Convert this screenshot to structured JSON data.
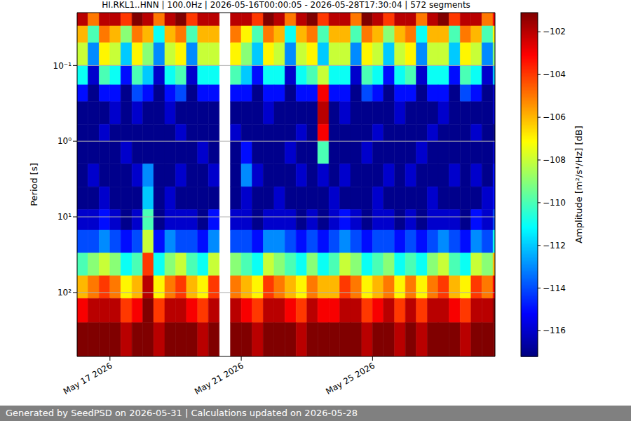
{
  "chart_data": {
    "type": "heatmap",
    "title": "HI.RKL1..HNN | 100.0Hz | 2026-05-16T00:00:05 - 2026-05-28T17:30:04 | 572 segments",
    "ylabel": "Period [s]",
    "xlim": [
      16,
      28.73
    ],
    "xticks": [
      {
        "value": 17,
        "label": "May 17 2026"
      },
      {
        "value": 21,
        "label": "May 21 2026"
      },
      {
        "value": 25,
        "label": "May 25 2026"
      }
    ],
    "ylim": [
      0.02,
      700
    ],
    "yticks": [
      {
        "value": 0.1,
        "label": "10⁻¹"
      },
      {
        "value": 1,
        "label": "10⁰"
      },
      {
        "value": 10,
        "label": "10¹"
      },
      {
        "value": 100,
        "label": "10²"
      }
    ],
    "log": "y",
    "grid": "y",
    "x_edges": [
      16,
      16.33,
      16.67,
      17,
      17.33,
      17.67,
      18,
      18.33,
      18.67,
      19,
      19.33,
      19.67,
      20,
      20.33,
      20.67,
      21,
      21.33,
      21.67,
      22,
      22.33,
      22.67,
      23,
      23.33,
      23.67,
      24,
      24.33,
      24.67,
      25,
      25.33,
      25.67,
      26,
      26.33,
      26.67,
      27,
      27.33,
      27.67,
      28,
      28.33,
      28.67,
      28.73
    ],
    "y_edges": [
      0.02,
      0.03,
      0.05,
      0.1,
      0.18,
      0.3,
      0.6,
      1,
      2,
      4,
      8,
      15,
      30,
      60,
      120,
      250,
      700
    ],
    "cells": [
      [
        -102,
        -105,
        -102,
        -102,
        -104,
        -101,
        -102,
        -105,
        -102,
        -101,
        -104,
        -102,
        -102,
        null,
        -102,
        -102,
        -104,
        -101,
        -102,
        -105,
        -102,
        -101,
        -104,
        -102,
        -102,
        -105,
        -101,
        -102,
        -104,
        -102,
        -102,
        -105,
        -102,
        -101,
        -104,
        -102,
        -102,
        -105,
        -103
      ],
      [
        -106,
        -110,
        -105,
        -106,
        -109,
        -105,
        -106,
        -111,
        -106,
        -105,
        -110,
        -106,
        -106,
        null,
        -105,
        -107,
        -110,
        -105,
        -106,
        -111,
        -106,
        -105,
        -110,
        -106,
        -106,
        -110,
        -105,
        -106,
        -109,
        -106,
        -105,
        -111,
        -106,
        -106,
        -110,
        -105,
        -106,
        -110,
        -107
      ],
      [
        -108,
        -113,
        -107,
        -108,
        -112,
        -107,
        -109,
        -113,
        -108,
        -107,
        -113,
        -108,
        -108,
        null,
        -107,
        -109,
        -112,
        -107,
        -108,
        -113,
        -108,
        -107,
        -112,
        -108,
        -108,
        -113,
        -107,
        -108,
        -112,
        -108,
        -107,
        -113,
        -108,
        -108,
        -112,
        -107,
        -108,
        -113,
        -109
      ],
      [
        -111,
        -116,
        -110,
        -111,
        -115,
        -110,
        -112,
        -116,
        -111,
        -110,
        -116,
        -111,
        -111,
        null,
        -110,
        -112,
        -115,
        -111,
        -111,
        -116,
        -111,
        -110,
        -108,
        -111,
        -111,
        -116,
        -110,
        -111,
        -115,
        -111,
        -110,
        -116,
        -111,
        -111,
        -115,
        -110,
        -111,
        -116,
        -112
      ],
      [
        -115,
        -117,
        -115,
        -115,
        -117,
        -114,
        -115,
        -117,
        -115,
        -114,
        -117,
        -115,
        -115,
        null,
        -115,
        -115,
        -117,
        -115,
        -115,
        -117,
        -115,
        -115,
        -103,
        -115,
        -115,
        -117,
        -114,
        -115,
        -117,
        -115,
        -115,
        -117,
        -115,
        -115,
        -117,
        -114,
        -115,
        -117,
        -116
      ],
      [
        -117,
        -117,
        -117,
        -116,
        -117,
        -116,
        -117,
        -117,
        -116,
        -117,
        -117,
        -117,
        -117,
        null,
        -117,
        -117,
        -117,
        -116,
        -117,
        -117,
        -117,
        -117,
        -102,
        -117,
        -116,
        -117,
        -117,
        -117,
        -117,
        -116,
        -117,
        -117,
        -117,
        -116,
        -117,
        -117,
        -117,
        -117,
        -116
      ],
      [
        -117,
        -117,
        -116,
        -117,
        -117,
        -117,
        -117,
        -117,
        -117,
        -116,
        -117,
        -117,
        -117,
        null,
        -116,
        -117,
        -117,
        -117,
        -117,
        -117,
        -116,
        -117,
        -103,
        -117,
        -117,
        -117,
        -117,
        -116,
        -117,
        -117,
        -117,
        -117,
        -116,
        -117,
        -117,
        -117,
        -116,
        -117,
        -117
      ],
      [
        -117,
        -117,
        -117,
        -117,
        -116,
        -117,
        -117,
        -117,
        -117,
        -117,
        -117,
        -116,
        -117,
        null,
        -117,
        -115,
        -117,
        -117,
        -117,
        -116,
        -117,
        -117,
        -110,
        -117,
        -117,
        -117,
        -116,
        -117,
        -117,
        -117,
        -117,
        -116,
        -117,
        -117,
        -117,
        -117,
        -117,
        -117,
        -116
      ],
      [
        -117,
        -116,
        -117,
        -117,
        -117,
        -116,
        -113,
        -117,
        -117,
        -116,
        -117,
        -117,
        -116,
        null,
        -117,
        -113,
        -116,
        -117,
        -117,
        -117,
        -116,
        -117,
        -116,
        -117,
        -116,
        -117,
        -117,
        -117,
        -116,
        -117,
        -116,
        -117,
        -117,
        -117,
        -116,
        -117,
        -116,
        -117,
        -115
      ],
      [
        -117,
        -117,
        -116,
        -117,
        -117,
        -117,
        -112,
        -117,
        -116,
        -117,
        -117,
        -117,
        -117,
        null,
        -117,
        -116,
        -117,
        -117,
        -116,
        -117,
        -117,
        -117,
        -117,
        -116,
        -117,
        -117,
        -117,
        -116,
        -117,
        -117,
        -117,
        -117,
        -116,
        -117,
        -117,
        -117,
        -117,
        -116,
        -115
      ],
      [
        -116,
        -116,
        -115,
        -116,
        -117,
        -116,
        -110,
        -117,
        -116,
        -116,
        -116,
        -117,
        -115,
        null,
        -116,
        -116,
        -117,
        -116,
        -116,
        -116,
        -117,
        -116,
        -117,
        -116,
        -115,
        -116,
        -117,
        -116,
        -116,
        -117,
        -116,
        -117,
        -116,
        -116,
        -116,
        -117,
        -115,
        -116,
        -114
      ],
      [
        -114,
        -114,
        -113,
        -114,
        -115,
        -114,
        -108,
        -115,
        -113,
        -114,
        -114,
        -115,
        -113,
        null,
        -114,
        -114,
        -115,
        -113,
        -113,
        -114,
        -115,
        -114,
        -115,
        -114,
        -113,
        -114,
        -115,
        -114,
        -114,
        -115,
        -114,
        -115,
        -114,
        -113,
        -114,
        -115,
        -113,
        -114,
        -111
      ],
      [
        -110,
        -109,
        -108,
        -109,
        -111,
        -110,
        -104,
        -111,
        -109,
        -108,
        -110,
        -111,
        -108,
        null,
        -109,
        -110,
        -111,
        -108,
        -109,
        -110,
        -111,
        -109,
        -111,
        -110,
        -108,
        -109,
        -111,
        -110,
        -109,
        -111,
        -110,
        -111,
        -109,
        -108,
        -110,
        -111,
        -108,
        -109,
        -106
      ],
      [
        -106,
        -105,
        -104,
        -105,
        -107,
        -106,
        -102,
        -107,
        -105,
        -104,
        -106,
        -107,
        -104,
        null,
        -105,
        -106,
        -107,
        -104,
        -105,
        -106,
        -107,
        -105,
        -106,
        -106,
        -104,
        -105,
        -107,
        -106,
        -105,
        -107,
        -105,
        -107,
        -105,
        -104,
        -106,
        -107,
        -104,
        -105,
        -103
      ],
      [
        -103,
        -102,
        -102,
        -102,
        -104,
        -103,
        -101,
        -104,
        -102,
        -102,
        -103,
        -104,
        -102,
        null,
        -102,
        -103,
        -104,
        -102,
        -102,
        -103,
        -104,
        -102,
        -103,
        -103,
        -102,
        -102,
        -104,
        -103,
        -102,
        -104,
        -102,
        -104,
        -102,
        -102,
        -103,
        -104,
        -102,
        -102,
        -101
      ],
      [
        -101,
        -101,
        -101,
        -101,
        -102,
        -101,
        -100,
        -102,
        -101,
        -101,
        -101,
        -102,
        -101,
        null,
        -101,
        -101,
        -102,
        -101,
        -101,
        -101,
        -102,
        -101,
        -101,
        -101,
        -101,
        -101,
        -102,
        -101,
        -101,
        -102,
        -101,
        -102,
        -101,
        -101,
        -101,
        -102,
        -101,
        -101,
        -100
      ]
    ],
    "colorbar": {
      "label": "Amplitude [m²/s⁴/Hz] [dB]",
      "range": [
        -117.2,
        -101.1
      ],
      "ticks": [
        {
          "value": -116,
          "label": "−116"
        },
        {
          "value": -114,
          "label": "−114"
        },
        {
          "value": -112,
          "label": "−112"
        },
        {
          "value": -110,
          "label": "−110"
        },
        {
          "value": -108,
          "label": "−108"
        },
        {
          "value": -106,
          "label": "−106"
        },
        {
          "value": -104,
          "label": "−104"
        },
        {
          "value": -102,
          "label": "−102"
        }
      ]
    }
  },
  "footer": "Generated by SeedPSD on 2026-05-31 | Calculations updated on 2026-05-28"
}
